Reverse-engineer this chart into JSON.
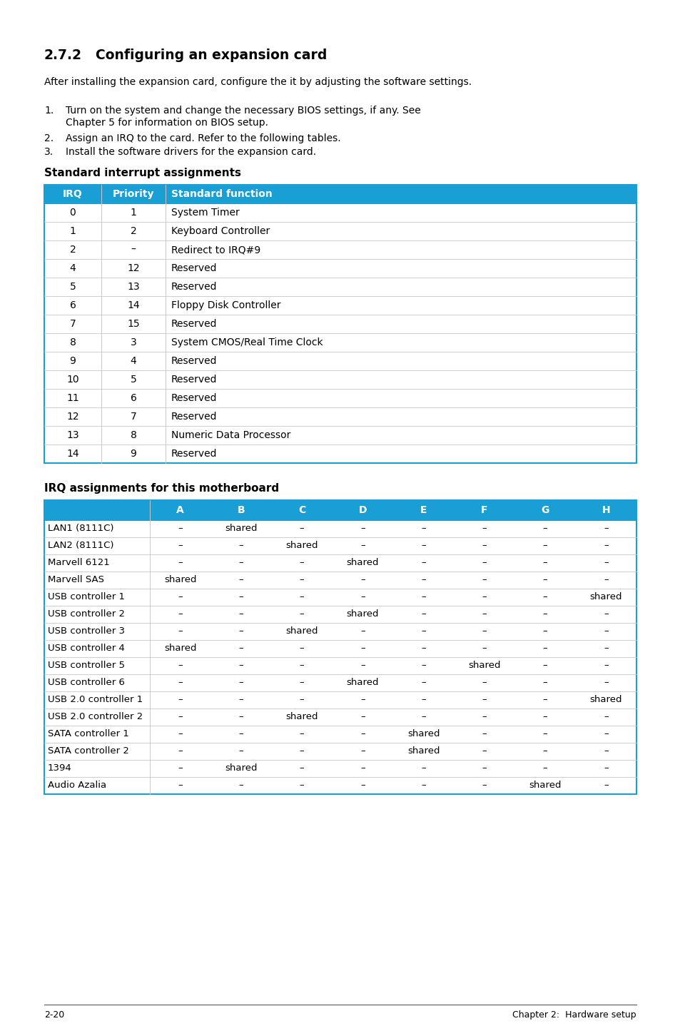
{
  "title_num": "2.7.2",
  "title_text": "Configuring an expansion card",
  "intro": "After installing the expansion card, configure the it by adjusting the software settings.",
  "steps": [
    [
      "Turn on the system and change the necessary BIOS settings, if any. See",
      "Chapter 5 for information on BIOS setup."
    ],
    [
      "Assign an IRQ to the card. Refer to the following tables."
    ],
    [
      "Install the software drivers for the expansion card."
    ]
  ],
  "table1_title": "Standard interrupt assignments",
  "table1_header": [
    "IRQ",
    "Priority",
    "Standard function"
  ],
  "table1_rows": [
    [
      "0",
      "1",
      "System Timer"
    ],
    [
      "1",
      "2",
      "Keyboard Controller"
    ],
    [
      "2",
      "–",
      "Redirect to IRQ#9"
    ],
    [
      "4",
      "12",
      "Reserved"
    ],
    [
      "5",
      "13",
      "Reserved"
    ],
    [
      "6",
      "14",
      "Floppy Disk Controller"
    ],
    [
      "7",
      "15",
      "Reserved"
    ],
    [
      "8",
      "3",
      "System CMOS/Real Time Clock"
    ],
    [
      "9",
      "4",
      "Reserved"
    ],
    [
      "10",
      "5",
      "Reserved"
    ],
    [
      "11",
      "6",
      "Reserved"
    ],
    [
      "12",
      "7",
      "Reserved"
    ],
    [
      "13",
      "8",
      "Numeric Data Processor"
    ],
    [
      "14",
      "9",
      "Reserved"
    ]
  ],
  "table2_title": "IRQ assignments for this motherboard",
  "table2_header": [
    "",
    "A",
    "B",
    "C",
    "D",
    "E",
    "F",
    "G",
    "H"
  ],
  "table2_rows": [
    [
      "LAN1 (8111C)",
      "–",
      "shared",
      "–",
      "–",
      "–",
      "–",
      "–",
      "–"
    ],
    [
      "LAN2 (8111C)",
      "–",
      "–",
      "shared",
      "–",
      "–",
      "–",
      "–",
      "–"
    ],
    [
      "Marvell 6121",
      "–",
      "–",
      "–",
      "shared",
      "–",
      "–",
      "–",
      "–"
    ],
    [
      "Marvell SAS",
      "shared",
      "–",
      "–",
      "–",
      "–",
      "–",
      "–",
      "–"
    ],
    [
      "USB controller 1",
      "–",
      "–",
      "–",
      "–",
      "–",
      "–",
      "–",
      "shared"
    ],
    [
      "USB controller 2",
      "–",
      "–",
      "–",
      "shared",
      "–",
      "–",
      "–",
      "–"
    ],
    [
      "USB controller 3",
      "–",
      "–",
      "shared",
      "–",
      "–",
      "–",
      "–",
      "–"
    ],
    [
      "USB controller 4",
      "shared",
      "–",
      "–",
      "–",
      "–",
      "–",
      "–",
      "–"
    ],
    [
      "USB controller 5",
      "–",
      "–",
      "–",
      "–",
      "–",
      "shared",
      "–",
      "–"
    ],
    [
      "USB controller 6",
      "–",
      "–",
      "–",
      "shared",
      "–",
      "–",
      "–",
      "–"
    ],
    [
      "USB 2.0 controller 1",
      "–",
      "–",
      "–",
      "–",
      "–",
      "–",
      "–",
      "shared"
    ],
    [
      "USB 2.0 controller 2",
      "–",
      "–",
      "shared",
      "–",
      "–",
      "–",
      "–",
      "–"
    ],
    [
      "SATA controller 1",
      "–",
      "–",
      "–",
      "–",
      "shared",
      "–",
      "–",
      "–"
    ],
    [
      "SATA controller 2",
      "–",
      "–",
      "–",
      "–",
      "shared",
      "–",
      "–",
      "–"
    ],
    [
      "1394",
      "–",
      "shared",
      "–",
      "–",
      "–",
      "–",
      "–",
      "–"
    ],
    [
      "Audio Azalia",
      "–",
      "–",
      "–",
      "–",
      "–",
      "–",
      "shared",
      "–"
    ]
  ],
  "footer_left": "2-20",
  "footer_right": "Chapter 2:  Hardware setup",
  "header_color": "#1A9FD4",
  "header_text_color": "#FFFFFF",
  "border_color": "#1A9FD4",
  "row_line_color": "#C8C8C8"
}
